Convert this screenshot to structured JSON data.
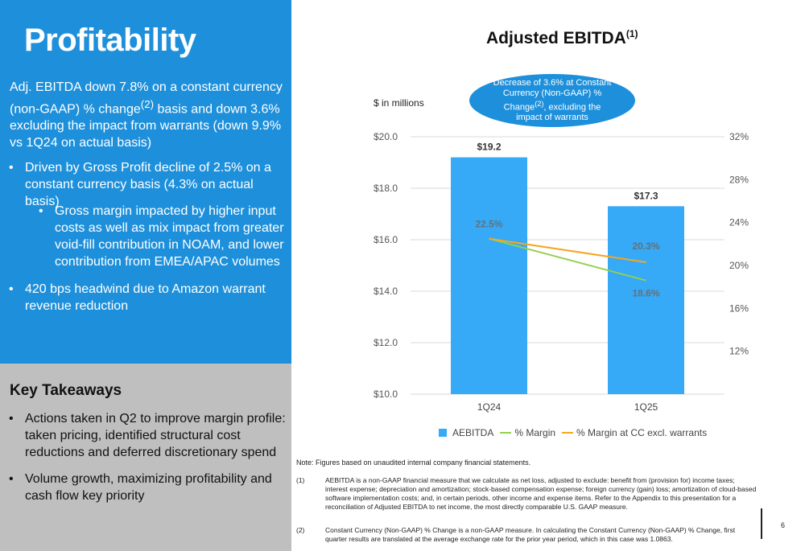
{
  "slide": {
    "title": "Profitability",
    "intro_main": "Adj. EBITDA down 7.8% on a constant currency (non-GAAP) % change",
    "intro_sup": "(2)",
    "intro_rest": " basis and down 3.6% excluding the impact from warrants (down 9.9% vs 1Q24 on actual basis)",
    "bullet_1": "Driven by Gross Profit decline of 2.5% on a constant currency basis (4.3% on actual basis)",
    "bullet_1a": "Gross margin impacted by higher input costs as well as mix impact from greater void-fill contribution in NOAM, and lower contribution from EMEA/APAC volumes",
    "bullet_2": "420 bps headwind due to Amazon warrant revenue reduction",
    "page_number": "6"
  },
  "takeaways": {
    "title": "Key Takeaways",
    "items": [
      "Actions taken in Q2 to improve margin profile: taken pricing, identified structural cost reductions and deferred discretionary spend",
      "Volume growth, maximizing profitability and cash flow key priority"
    ]
  },
  "chart_data": {
    "type": "bar",
    "title": "Adjusted EBITDA",
    "title_sup": "(1)",
    "units_label": "$ in millions",
    "callout": {
      "line_1": "Decrease of 3.6% at Constant Currency (Non-GAAP) % Change",
      "sup": "(2)",
      "line_2": ", excluding the impact of warrants"
    },
    "categories": [
      "1Q24",
      "1Q25"
    ],
    "ylim": [
      10.0,
      20.0
    ],
    "y_ticks": [
      "$20.0",
      "$18.0",
      "$16.0",
      "$14.0",
      "$12.0",
      "$10.0"
    ],
    "y2lim": [
      8,
      32
    ],
    "y2_ticks": [
      "32%",
      "28%",
      "24%",
      "20%",
      "16%",
      "12%"
    ],
    "series": [
      {
        "name": "AEBITDA",
        "kind": "bar",
        "axis": "left",
        "values": [
          19.2,
          17.3
        ],
        "labels": [
          "$19.2",
          "$17.3"
        ],
        "color": "#36a9f7"
      },
      {
        "name": "% Margin",
        "kind": "line",
        "axis": "right",
        "values": [
          22.5,
          18.6
        ],
        "labels": [
          "22.5%",
          "18.6%"
        ],
        "color": "#92d050"
      },
      {
        "name": "% Margin at CC excl. warrants",
        "kind": "line",
        "axis": "right",
        "values": [
          22.5,
          20.3
        ],
        "labels": [
          "",
          "20.3%"
        ],
        "color": "#f5a623"
      }
    ],
    "grid": true,
    "legend_position": "bottom"
  },
  "footnotes": {
    "note": "Note: Figures based on unaudited internal company financial statements.",
    "fn1_num": "(1)",
    "fn1_text": "AEBITDA is a non-GAAP financial measure that we calculate as net loss, adjusted to exclude: benefit from (provision for) income taxes; interest expense; depreciation and amortization; stock-based compensation expense; foreign currency (gain) loss; amortization of cloud-based software implementation costs; and, in certain periods, other income and expense items. Refer to the Appendix to this presentation for a reconciliation of Adjusted EBITDA to net income, the most directly comparable U.S. GAAP measure.",
    "fn2_num": "(2)",
    "fn2_text": "Constant Currency (Non-GAAP) % Change is a non-GAAP measure. In calculating the Constant Currency (Non-GAAP) % Change, first quarter results are translated at the average exchange rate for the prior year period, which in this case was 1.0863."
  }
}
